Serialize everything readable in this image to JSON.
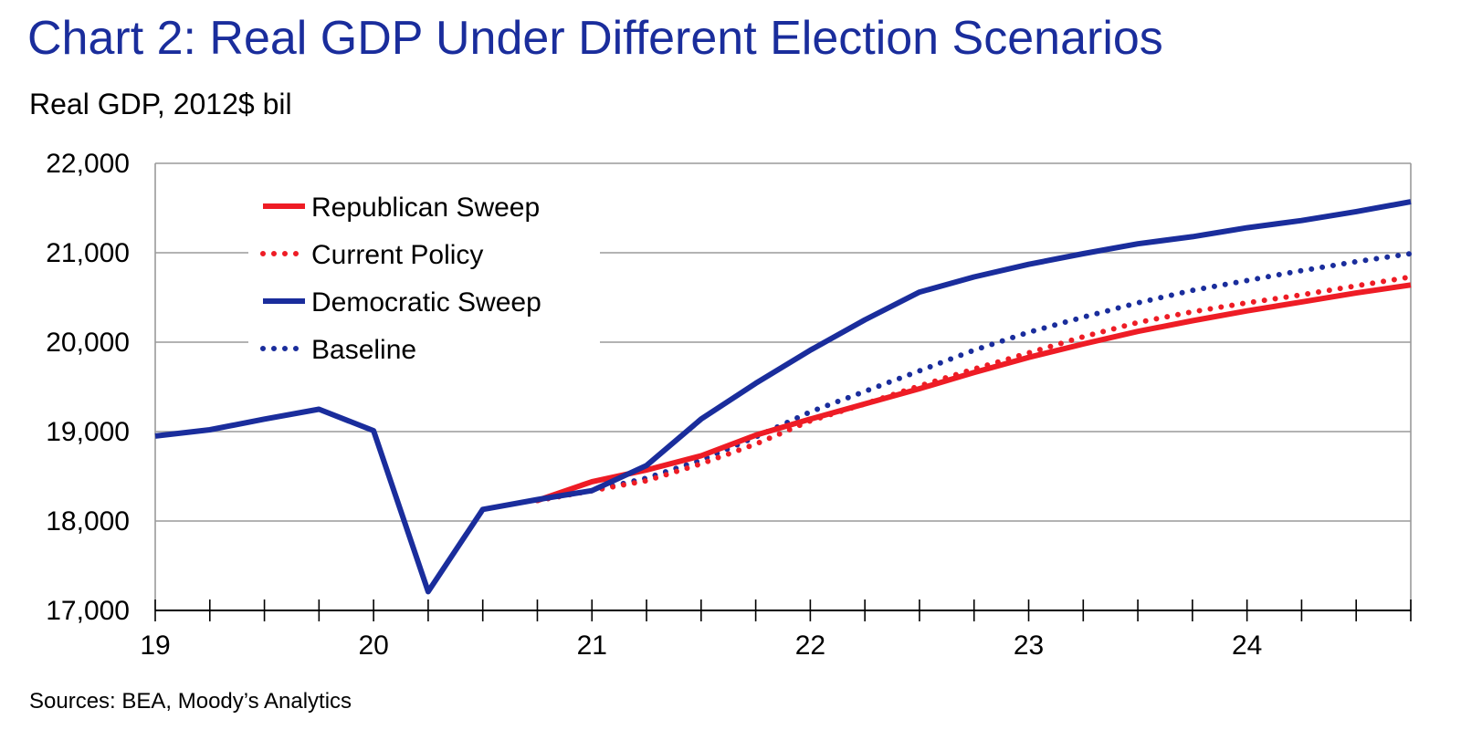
{
  "title": "Chart 2: Real GDP Under Different Election Scenarios",
  "subtitle": "Real GDP, 2012$ bil",
  "source": "Sources: BEA, Moody’s Analytics",
  "chart_data": {
    "type": "line",
    "title": "Chart 2: Real GDP Under Different Election Scenarios",
    "ylabel": "Real GDP, 2012$ bil",
    "xlabel": "",
    "xlim": [
      19,
      24.75
    ],
    "ylim": [
      17000,
      22000
    ],
    "x_ticks": [
      "19",
      "20",
      "21",
      "22",
      "23",
      "24"
    ],
    "y_ticks": [
      "17,000",
      "18,000",
      "19,000",
      "20,000",
      "21,000",
      "22,000"
    ],
    "grid": "horizontal",
    "legend_position": "top-left",
    "x": [
      19,
      19.25,
      19.5,
      19.75,
      20,
      20.25,
      20.5,
      20.75,
      21,
      21.25,
      21.5,
      21.75,
      22,
      22.25,
      22.5,
      22.75,
      23,
      23.25,
      23.5,
      23.75,
      24,
      24.25,
      24.5,
      24.75
    ],
    "series": [
      {
        "name": "Republican Sweep",
        "color": "#ee1c25",
        "style": "solid",
        "values": [
          null,
          null,
          null,
          null,
          null,
          null,
          null,
          18230,
          18440,
          18570,
          18730,
          18960,
          19140,
          19310,
          19480,
          19660,
          19830,
          19980,
          20120,
          20240,
          20350,
          20450,
          20550,
          20640
        ]
      },
      {
        "name": "Current Policy",
        "color": "#ee1c25",
        "style": "dotted",
        "values": [
          null,
          null,
          null,
          null,
          null,
          null,
          null,
          18230,
          18340,
          18450,
          18640,
          18860,
          19120,
          19310,
          19510,
          19700,
          19880,
          20060,
          20220,
          20340,
          20440,
          20530,
          20630,
          20730
        ]
      },
      {
        "name": "Democratic Sweep",
        "color": "#1a2d9c",
        "style": "solid",
        "values": [
          18950,
          19020,
          19140,
          19250,
          19010,
          17210,
          18130,
          18240,
          18340,
          18620,
          19140,
          19540,
          19910,
          20250,
          20560,
          20730,
          20870,
          20990,
          21100,
          21180,
          21280,
          21360,
          21460,
          21570
        ]
      },
      {
        "name": "Baseline",
        "color": "#1a2d9c",
        "style": "dotted",
        "values": [
          null,
          null,
          null,
          null,
          null,
          null,
          null,
          18230,
          18340,
          18480,
          18680,
          18940,
          19220,
          19450,
          19680,
          19910,
          20110,
          20280,
          20440,
          20580,
          20690,
          20800,
          20900,
          20990
        ]
      }
    ]
  }
}
